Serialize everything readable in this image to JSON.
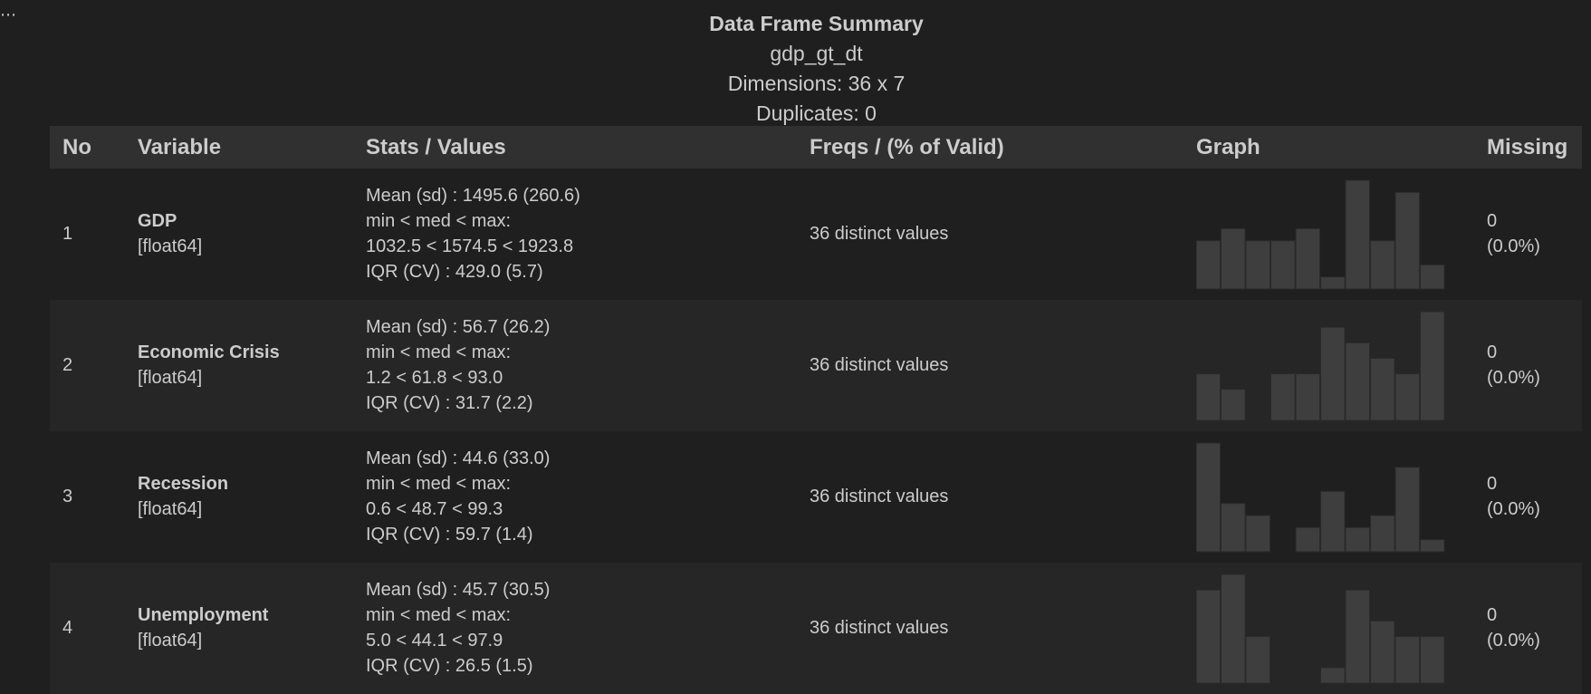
{
  "header": {
    "title": "Data Frame Summary",
    "dataset": "gdp_gt_dt",
    "dimensions": "Dimensions: 36 x 7",
    "duplicates": "Duplicates: 0"
  },
  "columns": {
    "no": "No",
    "variable": "Variable",
    "stats": "Stats / Values",
    "freqs": "Freqs / (% of Valid)",
    "graph": "Graph",
    "missing": "Missing"
  },
  "rows": [
    {
      "no": "1",
      "name": "GDP",
      "type": "[float64]",
      "stats": [
        "Mean (sd) : 1495.6 (260.6)",
        "min < med < max:",
        "1032.5 < 1574.5 < 1923.8",
        "IQR (CV) : 429.0 (5.7)"
      ],
      "freqs": "36 distinct values",
      "missing_count": "0",
      "missing_pct": "(0.0%)",
      "hist": [
        4,
        5,
        4,
        4,
        5,
        1,
        9,
        4,
        8,
        2
      ]
    },
    {
      "no": "2",
      "name": "Economic Crisis",
      "type": "[float64]",
      "stats": [
        "Mean (sd) : 56.7 (26.2)",
        "min < med < max:",
        "1.2 < 61.8 < 93.0",
        "IQR (CV) : 31.7 (2.2)"
      ],
      "freqs": "36 distinct values",
      "missing_count": "0",
      "missing_pct": "(0.0%)",
      "hist": [
        3,
        2,
        0,
        3,
        3,
        6,
        5,
        4,
        3,
        7
      ]
    },
    {
      "no": "3",
      "name": "Recession",
      "type": "[float64]",
      "stats": [
        "Mean (sd) : 44.6 (33.0)",
        "min < med < max:",
        "0.6 < 48.7 < 99.3",
        "IQR (CV) : 59.7 (1.4)"
      ],
      "freqs": "36 distinct values",
      "missing_count": "0",
      "missing_pct": "(0.0%)",
      "hist": [
        9,
        4,
        3,
        0,
        2,
        5,
        2,
        3,
        7,
        1
      ]
    },
    {
      "no": "4",
      "name": "Unemployment",
      "type": "[float64]",
      "stats": [
        "Mean (sd) : 45.7 (30.5)",
        "min < med < max:",
        "5.0 < 44.1 < 97.9",
        "IQR (CV) : 26.5 (1.5)"
      ],
      "freqs": "36 distinct values",
      "missing_count": "0",
      "missing_pct": "(0.0%)",
      "hist": [
        6,
        7,
        3,
        0,
        0,
        1,
        6,
        4,
        3,
        3
      ]
    }
  ]
}
